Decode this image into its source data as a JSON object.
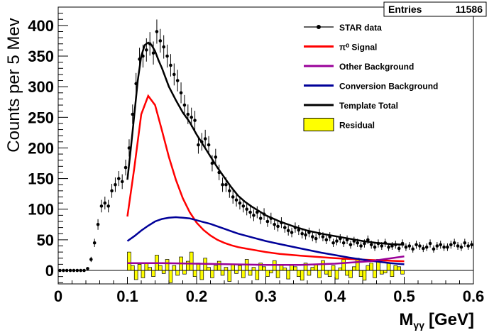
{
  "chart_data": {
    "type": "scatter",
    "xlabel": "M",
    "xlabel_sub": "γγ",
    "xlabel_unit": "[GeV]",
    "ylabel": "Counts per 5 Mev",
    "xlim": [
      0,
      0.6
    ],
    "ylim": [
      -22,
      430
    ],
    "xticks": [
      "0",
      "0.1",
      "0.2",
      "0.3",
      "0.4",
      "0.5",
      "0.6"
    ],
    "xtick_values": [
      0,
      0.1,
      0.2,
      0.3,
      0.4,
      0.5,
      0.6
    ],
    "yticks": [
      "0",
      "50",
      "100",
      "150",
      "200",
      "250",
      "300",
      "350",
      "400"
    ],
    "ytick_values": [
      0,
      50,
      100,
      150,
      200,
      250,
      300,
      350,
      400
    ],
    "grid": false,
    "legend_position": "top-right",
    "stats": {
      "label": "Entries",
      "value": "11586"
    },
    "legend": [
      {
        "label": "STAR data",
        "type": "marker",
        "color": "#000000"
      },
      {
        "label": "π⁰ Signal",
        "type": "line",
        "color": "#ff0000"
      },
      {
        "label": "Other Background",
        "type": "line",
        "color": "#990099"
      },
      {
        "label": "Conversion Background",
        "type": "line",
        "color": "#000099"
      },
      {
        "label": "Template Total",
        "type": "line",
        "color": "#000000"
      },
      {
        "label": "Residual",
        "type": "box",
        "color": "#ffff00"
      }
    ],
    "series": [
      {
        "name": "STAR data",
        "kind": "points",
        "color": "#000000",
        "x": [
          0.0025,
          0.0075,
          0.0125,
          0.0175,
          0.0225,
          0.0275,
          0.0325,
          0.0375,
          0.0425,
          0.0475,
          0.0525,
          0.0575,
          0.0625,
          0.0675,
          0.0725,
          0.0775,
          0.0825,
          0.0875,
          0.0925,
          0.0975,
          0.1025,
          0.1075,
          0.1125,
          0.1175,
          0.1225,
          0.1275,
          0.1325,
          0.1375,
          0.1425,
          0.1475,
          0.1525,
          0.1575,
          0.1625,
          0.1675,
          0.1725,
          0.1775,
          0.1825,
          0.1875,
          0.1925,
          0.1975,
          0.2025,
          0.2075,
          0.2125,
          0.2175,
          0.2225,
          0.2275,
          0.2325,
          0.2375,
          0.2425,
          0.2475,
          0.2525,
          0.2575,
          0.2625,
          0.2675,
          0.2725,
          0.2775,
          0.2825,
          0.2875,
          0.2925,
          0.2975,
          0.3025,
          0.3075,
          0.3125,
          0.3175,
          0.3225,
          0.3275,
          0.3325,
          0.3375,
          0.3425,
          0.3475,
          0.3525,
          0.3575,
          0.3625,
          0.3675,
          0.3725,
          0.3775,
          0.3825,
          0.3875,
          0.3925,
          0.3975,
          0.4025,
          0.4075,
          0.4125,
          0.4175,
          0.4225,
          0.4275,
          0.4325,
          0.4375,
          0.4425,
          0.4475,
          0.4525,
          0.4575,
          0.4625,
          0.4675,
          0.4725,
          0.4775,
          0.4825,
          0.4875,
          0.4925,
          0.4975,
          0.5025,
          0.5075,
          0.5125,
          0.5175,
          0.5225,
          0.5275,
          0.5325,
          0.5375,
          0.5425,
          0.5475,
          0.5525,
          0.5575,
          0.5625,
          0.5675,
          0.5725,
          0.5775,
          0.5825,
          0.5875,
          0.5925,
          0.5975
        ],
        "y": [
          0,
          0,
          0,
          0,
          0,
          0,
          0,
          0,
          3,
          18,
          45,
          75,
          105,
          110,
          105,
          130,
          140,
          150,
          145,
          168,
          200,
          255,
          305,
          345,
          350,
          360,
          370,
          355,
          390,
          375,
          365,
          350,
          335,
          320,
          310,
          290,
          270,
          255,
          250,
          245,
          205,
          210,
          215,
          205,
          175,
          185,
          160,
          140,
          140,
          130,
          120,
          115,
          110,
          105,
          100,
          95,
          90,
          95,
          85,
          92,
          80,
          85,
          75,
          72,
          78,
          70,
          65,
          62,
          70,
          66,
          60,
          58,
          62,
          55,
          52,
          60,
          55,
          50,
          55,
          45,
          48,
          52,
          45,
          50,
          42,
          48,
          45,
          40,
          44,
          50,
          42,
          38,
          44,
          40,
          45,
          38,
          40,
          42,
          36,
          44,
          38,
          40,
          35,
          42,
          40,
          36,
          38,
          44,
          35,
          40,
          42,
          38,
          38,
          42,
          45,
          40,
          38,
          45,
          40,
          42
        ]
      },
      {
        "name": "π⁰ Signal",
        "kind": "line",
        "color": "#ff0000",
        "x": [
          0.1,
          0.11,
          0.12,
          0.13,
          0.14,
          0.15,
          0.16,
          0.17,
          0.18,
          0.19,
          0.2,
          0.21,
          0.22,
          0.23,
          0.24,
          0.25,
          0.26,
          0.27,
          0.28,
          0.3,
          0.32,
          0.35,
          0.4,
          0.45,
          0.5
        ],
        "y": [
          88,
          168,
          255,
          285,
          270,
          228,
          185,
          148,
          118,
          95,
          78,
          66,
          57,
          50,
          45,
          41,
          38,
          36,
          34,
          30,
          27,
          24,
          20,
          17,
          15
        ]
      },
      {
        "name": "Conversion Background",
        "kind": "line",
        "color": "#000099",
        "x": [
          0.1,
          0.11,
          0.12,
          0.13,
          0.14,
          0.15,
          0.16,
          0.17,
          0.18,
          0.19,
          0.2,
          0.21,
          0.22,
          0.23,
          0.24,
          0.25,
          0.26,
          0.28,
          0.3,
          0.32,
          0.35,
          0.38,
          0.4,
          0.42,
          0.45,
          0.48,
          0.5
        ],
        "y": [
          48,
          56,
          65,
          73,
          80,
          84,
          86,
          87,
          86,
          85,
          82,
          79,
          76,
          72,
          68,
          64,
          60,
          54,
          48,
          43,
          36,
          29,
          25,
          21,
          16,
          12,
          10
        ]
      },
      {
        "name": "Other Background",
        "kind": "line",
        "color": "#990099",
        "x": [
          0.1,
          0.15,
          0.2,
          0.25,
          0.3,
          0.35,
          0.4,
          0.45,
          0.5
        ],
        "y": [
          12,
          12,
          11,
          10,
          9,
          9,
          11,
          15,
          23
        ]
      },
      {
        "name": "Template Total",
        "kind": "line",
        "color": "#000000",
        "x": [
          0.1,
          0.105,
          0.11,
          0.115,
          0.12,
          0.125,
          0.13,
          0.135,
          0.14,
          0.145,
          0.15,
          0.16,
          0.17,
          0.18,
          0.19,
          0.2,
          0.21,
          0.22,
          0.23,
          0.24,
          0.25,
          0.26,
          0.27,
          0.28,
          0.29,
          0.3,
          0.32,
          0.34,
          0.36,
          0.38,
          0.4,
          0.42,
          0.44,
          0.46,
          0.48,
          0.5
        ],
        "y": [
          148,
          200,
          255,
          310,
          350,
          368,
          372,
          368,
          358,
          343,
          330,
          300,
          278,
          258,
          242,
          222,
          204,
          186,
          168,
          152,
          136,
          122,
          112,
          104,
          97,
          90,
          80,
          72,
          65,
          60,
          56,
          52,
          48,
          45,
          43,
          42
        ]
      },
      {
        "name": "Residual",
        "kind": "histogram",
        "color": "#ffff00",
        "bin_width": 0.005,
        "x": [
          0.1025,
          0.1075,
          0.1125,
          0.1175,
          0.1225,
          0.1275,
          0.1325,
          0.1375,
          0.1425,
          0.1475,
          0.1525,
          0.1575,
          0.1625,
          0.1675,
          0.1725,
          0.1775,
          0.1825,
          0.1875,
          0.1925,
          0.1975,
          0.2025,
          0.2075,
          0.2125,
          0.2175,
          0.2225,
          0.2275,
          0.2325,
          0.2375,
          0.2425,
          0.2475,
          0.2525,
          0.2575,
          0.2625,
          0.2675,
          0.2725,
          0.2775,
          0.2825,
          0.2875,
          0.2925,
          0.2975,
          0.3025,
          0.3075,
          0.3125,
          0.3175,
          0.3225,
          0.3275,
          0.3325,
          0.3375,
          0.3425,
          0.3475,
          0.3525,
          0.3575,
          0.3625,
          0.3675,
          0.3725,
          0.3775,
          0.3825,
          0.3875,
          0.3925,
          0.3975,
          0.4025,
          0.4075,
          0.4125,
          0.4175,
          0.4225,
          0.4275,
          0.4325,
          0.4375,
          0.4425,
          0.4475,
          0.4525,
          0.4575,
          0.4625,
          0.4675,
          0.4725,
          0.4775,
          0.4825,
          0.4875,
          0.4925,
          0.4975
        ],
        "y": [
          30,
          8,
          -15,
          10,
          -12,
          12,
          5,
          -10,
          25,
          8,
          -5,
          18,
          -20,
          8,
          -8,
          22,
          -6,
          15,
          30,
          -10,
          12,
          -15,
          20,
          5,
          -12,
          8,
          15,
          -8,
          5,
          -18,
          10,
          -5,
          8,
          -12,
          18,
          -8,
          5,
          -15,
          12,
          6,
          -10,
          -4,
          16,
          -12,
          8,
          4,
          -14,
          10,
          6,
          -10,
          -16,
          12,
          -8,
          5,
          10,
          -12,
          16,
          -6,
          -10,
          8,
          -14,
          4,
          18,
          -8,
          -12,
          6,
          20,
          -10,
          -16,
          8,
          12,
          -12,
          18,
          -6,
          -4,
          12,
          -10,
          8,
          6,
          -6
        ]
      }
    ]
  }
}
